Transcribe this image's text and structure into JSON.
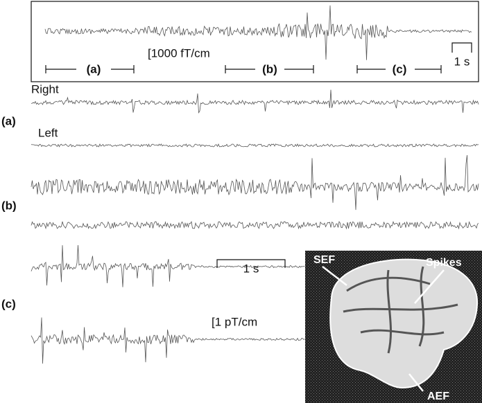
{
  "overview": {
    "segments": [
      "(a)",
      "(b)",
      "(c)"
    ],
    "amplitude_scale": "[1000 fT/cm",
    "time_scale": "1 s"
  },
  "panels": {
    "a": {
      "label": "(a)",
      "traces": [
        "Right",
        "Left"
      ]
    },
    "b": {
      "label": "(b)"
    },
    "c": {
      "label": "(c)"
    }
  },
  "scales": {
    "time": "1 s",
    "amplitude": "[1 pT/cm"
  },
  "brain": {
    "labels": [
      "SEF",
      "Spikes",
      "AEF"
    ]
  }
}
